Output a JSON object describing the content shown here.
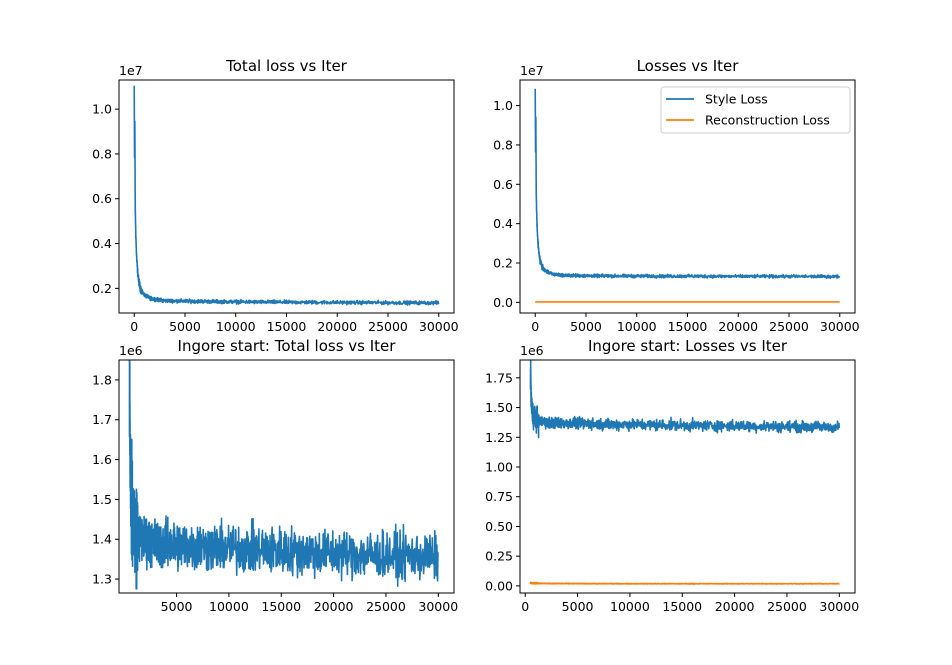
{
  "colors": {
    "style": "#1f77b4",
    "reconstruction": "#ff7f0e",
    "axes": "#000000",
    "background": "#ffffff"
  },
  "chart_data": [
    {
      "type": "line",
      "title": "Total loss vs Iter",
      "offset_text": "1e7",
      "xlim": [
        -1500,
        31500
      ],
      "ylim": [
        0.09,
        1.13
      ],
      "xticks": [
        0,
        5000,
        10000,
        15000,
        20000,
        25000,
        30000
      ],
      "xtick_labels": [
        "0",
        "5000",
        "10000",
        "15000",
        "20000",
        "25000",
        "30000"
      ],
      "yticks": [
        0.2,
        0.4,
        0.6,
        0.8,
        1.0
      ],
      "ytick_labels": [
        "0.2",
        "0.4",
        "0.6",
        "0.8",
        "1.0"
      ],
      "grid": false,
      "series": [
        {
          "color_key": "style",
          "noisy": true,
          "x": [
            0,
            30,
            60,
            100,
            150,
            200,
            260,
            330,
            420,
            550,
            700,
            900,
            1200,
            1600,
            2200,
            3000,
            5000,
            8000,
            12000,
            16000,
            20000,
            25000,
            30000
          ],
          "y": [
            1.09,
            0.78,
            0.95,
            0.56,
            0.45,
            0.38,
            0.32,
            0.28,
            0.24,
            0.21,
            0.19,
            0.175,
            0.165,
            0.155,
            0.15,
            0.145,
            0.143,
            0.141,
            0.139,
            0.138,
            0.137,
            0.136,
            0.135
          ],
          "noise": 0.006
        }
      ]
    },
    {
      "type": "line",
      "title": "Losses vs Iter",
      "offset_text": "1e7",
      "xlim": [
        -1500,
        31500
      ],
      "ylim": [
        -0.054,
        1.13
      ],
      "xticks": [
        0,
        5000,
        10000,
        15000,
        20000,
        25000,
        30000
      ],
      "xtick_labels": [
        "0",
        "5000",
        "10000",
        "15000",
        "20000",
        "25000",
        "30000"
      ],
      "yticks": [
        0.0,
        0.2,
        0.4,
        0.6,
        0.8,
        1.0
      ],
      "ytick_labels": [
        "0.0",
        "0.2",
        "0.4",
        "0.6",
        "0.8",
        "1.0"
      ],
      "grid": false,
      "legend": {
        "placement": "top-right",
        "entries": [
          {
            "label": "Style Loss",
            "color_key": "style"
          },
          {
            "label": "Reconstruction Loss",
            "color_key": "reconstruction"
          }
        ]
      },
      "series": [
        {
          "name": "Style Loss",
          "color_key": "style",
          "noisy": true,
          "x": [
            0,
            30,
            60,
            100,
            150,
            200,
            260,
            330,
            420,
            550,
            700,
            900,
            1200,
            1600,
            2200,
            3000,
            5000,
            8000,
            12000,
            16000,
            20000,
            25000,
            30000
          ],
          "y": [
            1.085,
            0.77,
            0.95,
            0.55,
            0.44,
            0.37,
            0.31,
            0.27,
            0.23,
            0.2,
            0.18,
            0.165,
            0.155,
            0.145,
            0.14,
            0.137,
            0.135,
            0.134,
            0.133,
            0.133,
            0.132,
            0.132,
            0.131
          ],
          "noise": 0.006
        },
        {
          "name": "Reconstruction Loss",
          "color_key": "reconstruction",
          "noisy": false,
          "x": [
            0,
            30000
          ],
          "y": [
            0.002,
            0.002
          ],
          "noise": 0
        }
      ]
    },
    {
      "type": "line",
      "title": "Ingore start: Total loss vs Iter",
      "offset_text": "1e6",
      "xlim": [
        -500,
        31500
      ],
      "ylim": [
        1.265,
        1.85
      ],
      "xticks": [
        5000,
        10000,
        15000,
        20000,
        25000,
        30000
      ],
      "xtick_labels": [
        "5000",
        "10000",
        "15000",
        "20000",
        "25000",
        "30000"
      ],
      "yticks": [
        1.3,
        1.4,
        1.5,
        1.6,
        1.7,
        1.8
      ],
      "ytick_labels": [
        "1.3",
        "1.4",
        "1.5",
        "1.6",
        "1.7",
        "1.8"
      ],
      "grid": false,
      "series": [
        {
          "color_key": "style",
          "noisy": true,
          "x": [
            500,
            520,
            560,
            620,
            700,
            800,
            1000,
            1300,
            2000,
            3000,
            5000,
            8000,
            12000,
            16000,
            20000,
            25000,
            30000
          ],
          "y": [
            1.77,
            1.83,
            1.62,
            1.55,
            1.5,
            1.46,
            1.43,
            1.41,
            1.395,
            1.39,
            1.385,
            1.38,
            1.375,
            1.37,
            1.365,
            1.36,
            1.355
          ],
          "noise": 0.045
        }
      ]
    },
    {
      "type": "line",
      "title": "Ingore start: Losses vs Iter",
      "offset_text": "1e6",
      "xlim": [
        -500,
        31500
      ],
      "ylim": [
        -0.06,
        1.9
      ],
      "xticks": [
        0,
        5000,
        10000,
        15000,
        20000,
        25000,
        30000
      ],
      "xtick_labels": [
        "0",
        "5000",
        "10000",
        "15000",
        "20000",
        "25000",
        "30000"
      ],
      "yticks": [
        0.0,
        0.25,
        0.5,
        0.75,
        1.0,
        1.25,
        1.5,
        1.75
      ],
      "ytick_labels": [
        "0.00",
        "0.25",
        "0.50",
        "0.75",
        "1.00",
        "1.25",
        "1.50",
        "1.75"
      ],
      "grid": false,
      "series": [
        {
          "name": "Style Loss",
          "color_key": "style",
          "noisy": true,
          "x": [
            500,
            520,
            560,
            620,
            700,
            800,
            1000,
            1300,
            2000,
            3000,
            5000,
            8000,
            12000,
            16000,
            20000,
            25000,
            30000
          ],
          "y": [
            1.7,
            1.8,
            1.58,
            1.5,
            1.45,
            1.42,
            1.4,
            1.385,
            1.375,
            1.37,
            1.365,
            1.36,
            1.355,
            1.35,
            1.345,
            1.34,
            1.335
          ],
          "noise": 0.035
        },
        {
          "name": "Reconstruction Loss",
          "color_key": "reconstruction",
          "noisy": true,
          "x": [
            500,
            1000,
            2000,
            5000,
            10000,
            20000,
            30000
          ],
          "y": [
            0.025,
            0.022,
            0.02,
            0.019,
            0.018,
            0.018,
            0.018
          ],
          "noise": 0.002
        }
      ]
    }
  ]
}
